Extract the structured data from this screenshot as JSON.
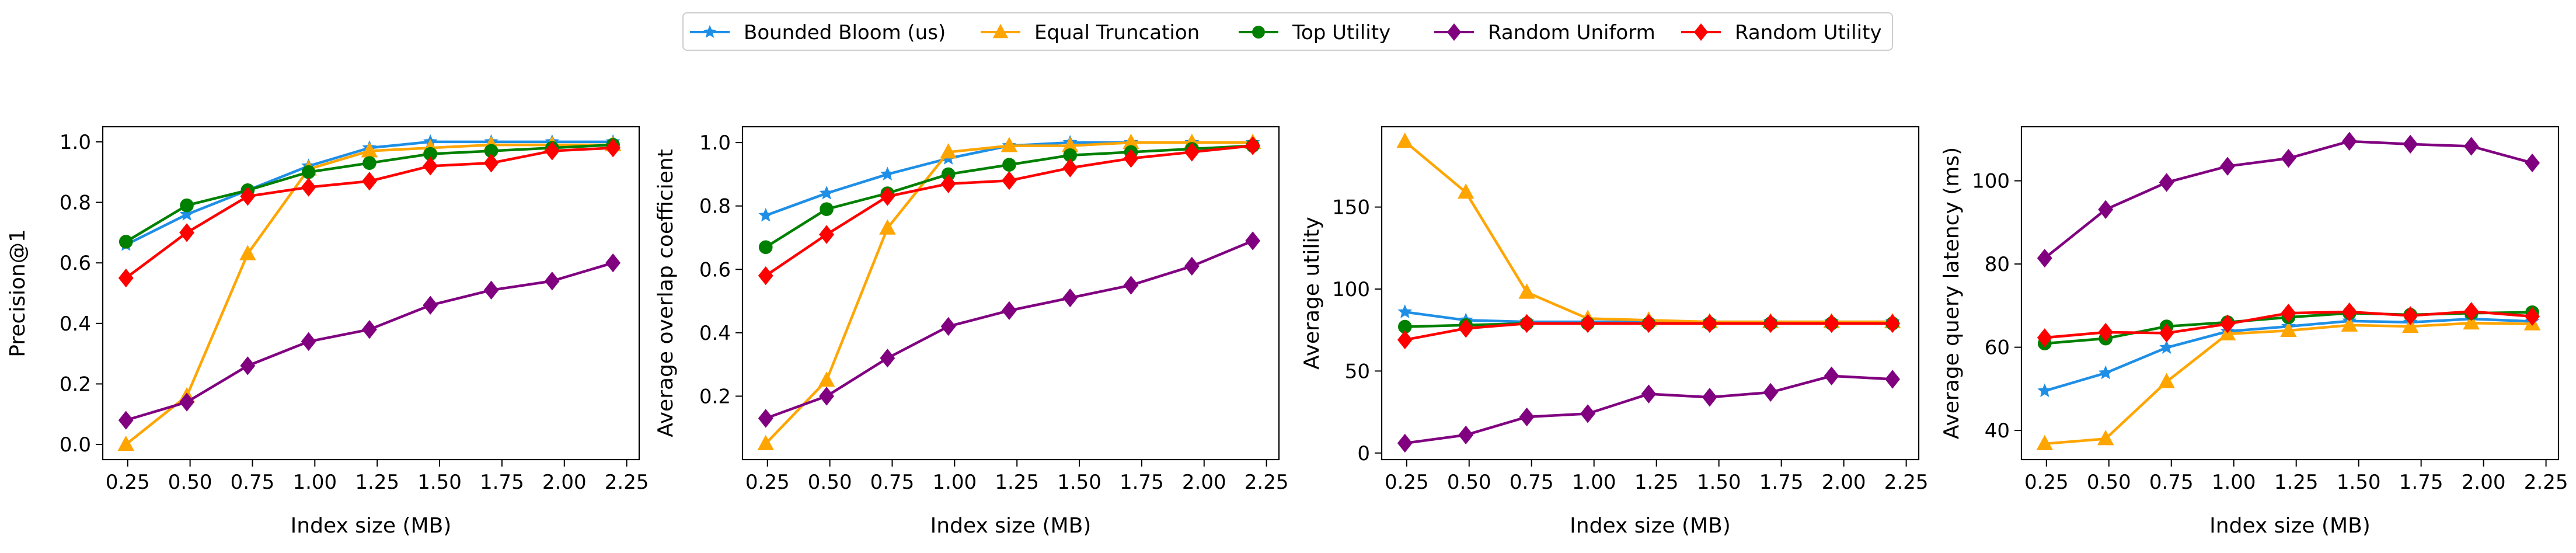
{
  "legend": {
    "placement": "top-center",
    "entries": [
      {
        "label": "Bounded Bloom (us)",
        "color": "#1f8fe6",
        "marker": "star"
      },
      {
        "label": "Equal Truncation",
        "color": "#ffa500",
        "marker": "triangle"
      },
      {
        "label": "Top Utility",
        "color": "#008000",
        "marker": "circle"
      },
      {
        "label": "Random Uniform",
        "color": "#800080",
        "marker": "diamond"
      },
      {
        "label": "Random Utility",
        "color": "#ff0000",
        "marker": "diamond"
      }
    ]
  },
  "chart_data": [
    {
      "type": "line",
      "title": "",
      "xlabel": "Index size (MB)",
      "ylabel": "Precision@1",
      "xlim": [
        0.15,
        2.3
      ],
      "ylim": [
        -0.05,
        1.05
      ],
      "xticks": [
        "0.25",
        "0.50",
        "0.75",
        "1.00",
        "1.25",
        "1.50",
        "1.75",
        "2.00",
        "2.25"
      ],
      "yticks": [
        "0.0",
        "0.2",
        "0.4",
        "0.6",
        "0.8",
        "1.0"
      ],
      "grid": false,
      "x": [
        0.243,
        0.487,
        0.731,
        0.975,
        1.219,
        1.463,
        1.707,
        1.951,
        2.195
      ],
      "series": [
        {
          "name": "Bounded Bloom (us)",
          "values": [
            0.66,
            0.76,
            0.84,
            0.92,
            0.98,
            1.0,
            1.0,
            1.0,
            1.0
          ]
        },
        {
          "name": "Equal Truncation",
          "values": [
            0.0,
            0.16,
            0.63,
            0.91,
            0.97,
            0.98,
            0.99,
            0.99,
            0.99
          ]
        },
        {
          "name": "Top Utility",
          "values": [
            0.67,
            0.79,
            0.84,
            0.9,
            0.93,
            0.96,
            0.97,
            0.98,
            0.99
          ]
        },
        {
          "name": "Random Uniform",
          "values": [
            0.08,
            0.14,
            0.26,
            0.34,
            0.38,
            0.46,
            0.51,
            0.54,
            0.6
          ]
        },
        {
          "name": "Random Utility",
          "values": [
            0.55,
            0.7,
            0.82,
            0.85,
            0.87,
            0.92,
            0.93,
            0.97,
            0.98
          ]
        }
      ]
    },
    {
      "type": "line",
      "title": "",
      "xlabel": "Index size (MB)",
      "ylabel": "Average overlap coefficient",
      "xlim": [
        0.15,
        2.3
      ],
      "ylim": [
        0.0,
        1.05
      ],
      "xticks": [
        "0.25",
        "0.50",
        "0.75",
        "1.00",
        "1.25",
        "1.50",
        "1.75",
        "2.00",
        "2.25"
      ],
      "yticks": [
        "0.2",
        "0.4",
        "0.6",
        "0.8",
        "1.0"
      ],
      "grid": false,
      "x": [
        0.243,
        0.487,
        0.731,
        0.975,
        1.219,
        1.463,
        1.707,
        1.951,
        2.195
      ],
      "series": [
        {
          "name": "Bounded Bloom (us)",
          "values": [
            0.77,
            0.84,
            0.9,
            0.95,
            0.99,
            1.0,
            1.0,
            1.0,
            1.0
          ]
        },
        {
          "name": "Equal Truncation",
          "values": [
            0.05,
            0.25,
            0.73,
            0.97,
            0.99,
            0.99,
            1.0,
            1.0,
            1.0
          ]
        },
        {
          "name": "Top Utility",
          "values": [
            0.67,
            0.79,
            0.84,
            0.9,
            0.93,
            0.96,
            0.97,
            0.98,
            0.99
          ]
        },
        {
          "name": "Random Uniform",
          "values": [
            0.13,
            0.2,
            0.32,
            0.42,
            0.47,
            0.51,
            0.55,
            0.61,
            0.69
          ]
        },
        {
          "name": "Random Utility",
          "values": [
            0.58,
            0.71,
            0.83,
            0.87,
            0.88,
            0.92,
            0.95,
            0.97,
            0.99
          ]
        }
      ]
    },
    {
      "type": "line",
      "title": "",
      "xlabel": "Index size (MB)",
      "ylabel": "Average utility",
      "xlim": [
        0.15,
        2.3
      ],
      "ylim": [
        -4,
        199
      ],
      "xticks": [
        "0.25",
        "0.50",
        "0.75",
        "1.00",
        "1.25",
        "1.50",
        "1.75",
        "2.00",
        "2.25"
      ],
      "yticks": [
        "0",
        "50",
        "100",
        "150"
      ],
      "grid": false,
      "x": [
        0.243,
        0.487,
        0.731,
        0.975,
        1.219,
        1.463,
        1.707,
        1.951,
        2.195
      ],
      "series": [
        {
          "name": "Bounded Bloom (us)",
          "values": [
            86,
            81,
            80,
            80,
            80,
            80,
            80,
            80,
            80
          ]
        },
        {
          "name": "Equal Truncation",
          "values": [
            190,
            159,
            98,
            82,
            81,
            80,
            80,
            80,
            80
          ]
        },
        {
          "name": "Top Utility",
          "values": [
            77,
            78,
            79,
            79,
            79,
            79,
            79,
            79,
            79
          ]
        },
        {
          "name": "Random Uniform",
          "values": [
            6,
            11,
            22,
            24,
            36,
            34,
            37,
            47,
            45
          ]
        },
        {
          "name": "Random Utility",
          "values": [
            69,
            76,
            79,
            79,
            79,
            79,
            79,
            79,
            79
          ]
        }
      ]
    },
    {
      "type": "line",
      "title": "",
      "xlabel": "Index size (MB)",
      "ylabel": "Average query latency (ms)",
      "xlim": [
        0.15,
        2.3
      ],
      "ylim": [
        33,
        113
      ],
      "xticks": [
        "0.25",
        "0.50",
        "0.75",
        "1.00",
        "1.25",
        "1.50",
        "1.75",
        "2.00",
        "2.25"
      ],
      "yticks": [
        "40",
        "60",
        "80",
        "100"
      ],
      "grid": false,
      "x": [
        0.243,
        0.487,
        0.731,
        0.975,
        1.219,
        1.463,
        1.707,
        1.951,
        2.195
      ],
      "series": [
        {
          "name": "Bounded Bloom (us)",
          "values": [
            49.5,
            53.8,
            59.9,
            63.8,
            65.0,
            66.3,
            66.0,
            66.8,
            66.2
          ]
        },
        {
          "name": "Equal Truncation",
          "values": [
            36.8,
            38.0,
            51.7,
            63.2,
            64.0,
            65.3,
            65.0,
            65.8,
            65.6
          ]
        },
        {
          "name": "Top Utility",
          "values": [
            60.9,
            62.1,
            65.0,
            66.0,
            67.2,
            68.2,
            67.8,
            68.2,
            68.4
          ]
        },
        {
          "name": "Random Uniform",
          "values": [
            81.4,
            93.1,
            99.6,
            103.5,
            105.4,
            109.5,
            108.8,
            108.3,
            104.3
          ]
        },
        {
          "name": "Random Utility",
          "values": [
            62.3,
            63.6,
            63.4,
            65.6,
            68.2,
            68.5,
            67.6,
            68.6,
            67.4
          ]
        }
      ]
    }
  ]
}
